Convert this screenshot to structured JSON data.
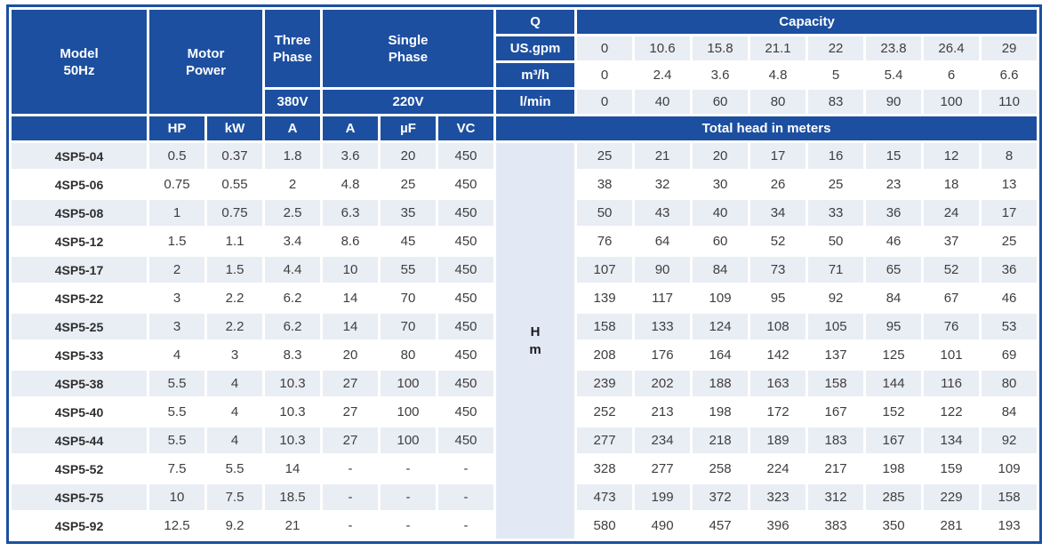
{
  "colors": {
    "header_blue": "#1d4fa0",
    "band_light": "#e9edf4",
    "band_white": "#ffffff",
    "head_unit_bg": "#e3e9f4",
    "header_text": "#ffffff",
    "value_text": "#3e3e3e"
  },
  "table": {
    "header": {
      "model": [
        "Model",
        "50Hz"
      ],
      "motor_power": [
        "Motor",
        "Power"
      ],
      "three_phase": [
        "Three",
        "Phase"
      ],
      "single_phase": [
        "Single",
        "Phase"
      ],
      "three_phase_voltage": "380V",
      "single_phase_voltage": "220V",
      "q": "Q",
      "capacity": "Capacity",
      "flow_rows": [
        {
          "unit": "US.gpm",
          "values": [
            "0",
            "10.6",
            "15.8",
            "21.1",
            "22",
            "23.8",
            "26.4",
            "29"
          ]
        },
        {
          "unit": "m³/h",
          "values": [
            "0",
            "2.4",
            "3.6",
            "4.8",
            "5",
            "5.4",
            "6",
            "6.6"
          ]
        },
        {
          "unit": "l/min",
          "values": [
            "0",
            "40",
            "60",
            "80",
            "83",
            "90",
            "100",
            "110"
          ]
        }
      ],
      "sub": [
        "HP",
        "kW",
        "A",
        "A",
        "µF",
        "VC"
      ],
      "total_head": "Total head in meters",
      "head_unit": [
        "H",
        "m"
      ]
    },
    "rows": [
      {
        "model": "4SP5-04",
        "motor": [
          "0.5",
          "0.37",
          "1.8",
          "3.6",
          "20",
          "450"
        ],
        "head": [
          "25",
          "21",
          "20",
          "17",
          "16",
          "15",
          "12",
          "8"
        ]
      },
      {
        "model": "4SP5-06",
        "motor": [
          "0.75",
          "0.55",
          "2",
          "4.8",
          "25",
          "450"
        ],
        "head": [
          "38",
          "32",
          "30",
          "26",
          "25",
          "23",
          "18",
          "13"
        ]
      },
      {
        "model": "4SP5-08",
        "motor": [
          "1",
          "0.75",
          "2.5",
          "6.3",
          "35",
          "450"
        ],
        "head": [
          "50",
          "43",
          "40",
          "34",
          "33",
          "36",
          "24",
          "17"
        ]
      },
      {
        "model": "4SP5-12",
        "motor": [
          "1.5",
          "1.1",
          "3.4",
          "8.6",
          "45",
          "450"
        ],
        "head": [
          "76",
          "64",
          "60",
          "52",
          "50",
          "46",
          "37",
          "25"
        ]
      },
      {
        "model": "4SP5-17",
        "motor": [
          "2",
          "1.5",
          "4.4",
          "10",
          "55",
          "450"
        ],
        "head": [
          "107",
          "90",
          "84",
          "73",
          "71",
          "65",
          "52",
          "36"
        ]
      },
      {
        "model": "4SP5-22",
        "motor": [
          "3",
          "2.2",
          "6.2",
          "14",
          "70",
          "450"
        ],
        "head": [
          "139",
          "117",
          "109",
          "95",
          "92",
          "84",
          "67",
          "46"
        ]
      },
      {
        "model": "4SP5-25",
        "motor": [
          "3",
          "2.2",
          "6.2",
          "14",
          "70",
          "450"
        ],
        "head": [
          "158",
          "133",
          "124",
          "108",
          "105",
          "95",
          "76",
          "53"
        ]
      },
      {
        "model": "4SP5-33",
        "motor": [
          "4",
          "3",
          "8.3",
          "20",
          "80",
          "450"
        ],
        "head": [
          "208",
          "176",
          "164",
          "142",
          "137",
          "125",
          "101",
          "69"
        ]
      },
      {
        "model": "4SP5-38",
        "motor": [
          "5.5",
          "4",
          "10.3",
          "27",
          "100",
          "450"
        ],
        "head": [
          "239",
          "202",
          "188",
          "163",
          "158",
          "144",
          "116",
          "80"
        ]
      },
      {
        "model": "4SP5-40",
        "motor": [
          "5.5",
          "4",
          "10.3",
          "27",
          "100",
          "450"
        ],
        "head": [
          "252",
          "213",
          "198",
          "172",
          "167",
          "152",
          "122",
          "84"
        ]
      },
      {
        "model": "4SP5-44",
        "motor": [
          "5.5",
          "4",
          "10.3",
          "27",
          "100",
          "450"
        ],
        "head": [
          "277",
          "234",
          "218",
          "189",
          "183",
          "167",
          "134",
          "92"
        ]
      },
      {
        "model": "4SP5-52",
        "motor": [
          "7.5",
          "5.5",
          "14",
          "-",
          "-",
          "-"
        ],
        "head": [
          "328",
          "277",
          "258",
          "224",
          "217",
          "198",
          "159",
          "109"
        ]
      },
      {
        "model": "4SP5-75",
        "motor": [
          "10",
          "7.5",
          "18.5",
          "-",
          "-",
          "-"
        ],
        "head": [
          "473",
          "199",
          "372",
          "323",
          "312",
          "285",
          "229",
          "158"
        ]
      },
      {
        "model": "4SP5-92",
        "motor": [
          "12.5",
          "9.2",
          "21",
          "-",
          "-",
          "-"
        ],
        "head": [
          "580",
          "490",
          "457",
          "396",
          "383",
          "350",
          "281",
          "193"
        ]
      }
    ]
  }
}
